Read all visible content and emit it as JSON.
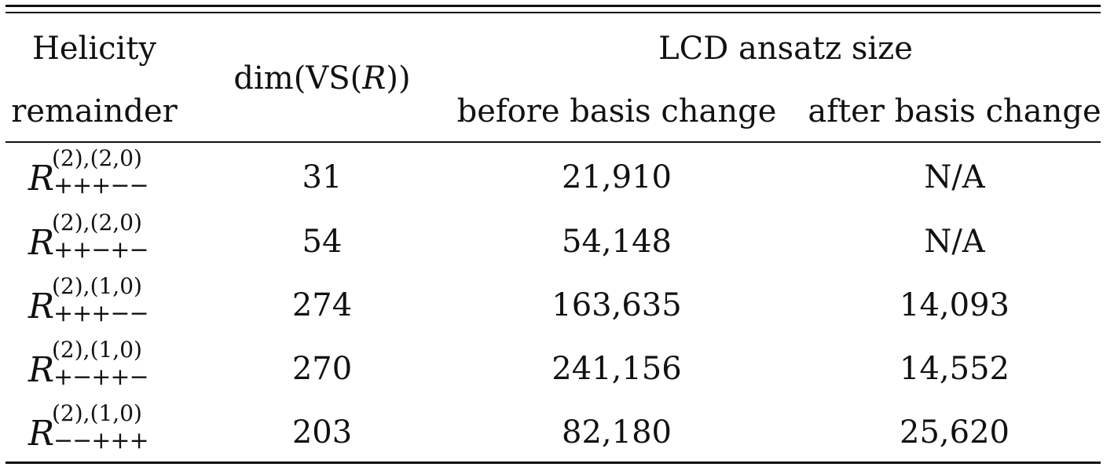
{
  "table": {
    "headers": {
      "helicity_line1": "Helicity",
      "helicity_line2": "remainder",
      "dim_prefix": "dim(VS(",
      "dim_symbol": "R",
      "dim_suffix": "))",
      "lcd_group": "LCD ansatz size",
      "before": "before basis change",
      "after": "after basis change"
    },
    "rows": [
      {
        "r_sup": "(2),(2,0)",
        "r_sub": "+++−−",
        "dim": "31",
        "before": "21,910",
        "after": "N/A"
      },
      {
        "r_sup": "(2),(2,0)",
        "r_sub": "++−+−",
        "dim": "54",
        "before": "54,148",
        "after": "N/A"
      },
      {
        "r_sup": "(2),(1,0)",
        "r_sub": "+++−−",
        "dim": "274",
        "before": "163,635",
        "after": "14,093"
      },
      {
        "r_sup": "(2),(1,0)",
        "r_sub": "+−++−",
        "dim": "270",
        "before": "241,156",
        "after": "14,552"
      },
      {
        "r_sup": "(2),(1,0)",
        "r_sub": "−−+++",
        "dim": "203",
        "before": "82,180",
        "after": "25,620"
      }
    ],
    "r_symbol": "R"
  }
}
